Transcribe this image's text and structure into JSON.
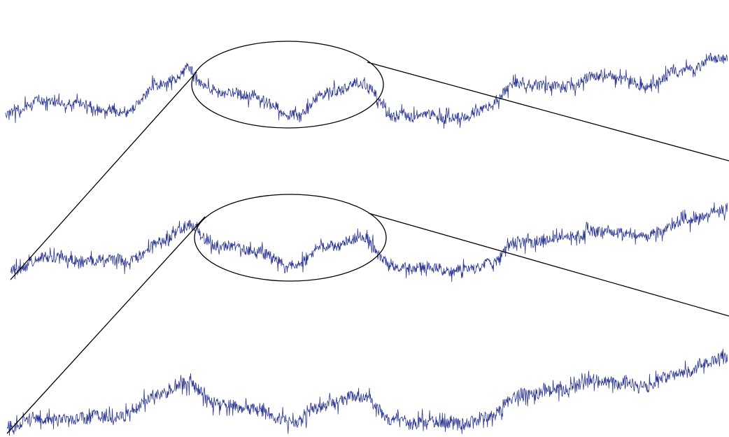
{
  "figure": {
    "kind": "self-similar time series zoom illustration",
    "rows": [
      {
        "name": "top-series",
        "highlighted_segment": true
      },
      {
        "name": "middle-series",
        "highlighted_segment": true
      },
      {
        "name": "bottom-series",
        "highlighted_segment": false
      }
    ],
    "colors": {
      "series": "#2b3694",
      "annotation": "#000000",
      "background": "#ffffff"
    }
  }
}
